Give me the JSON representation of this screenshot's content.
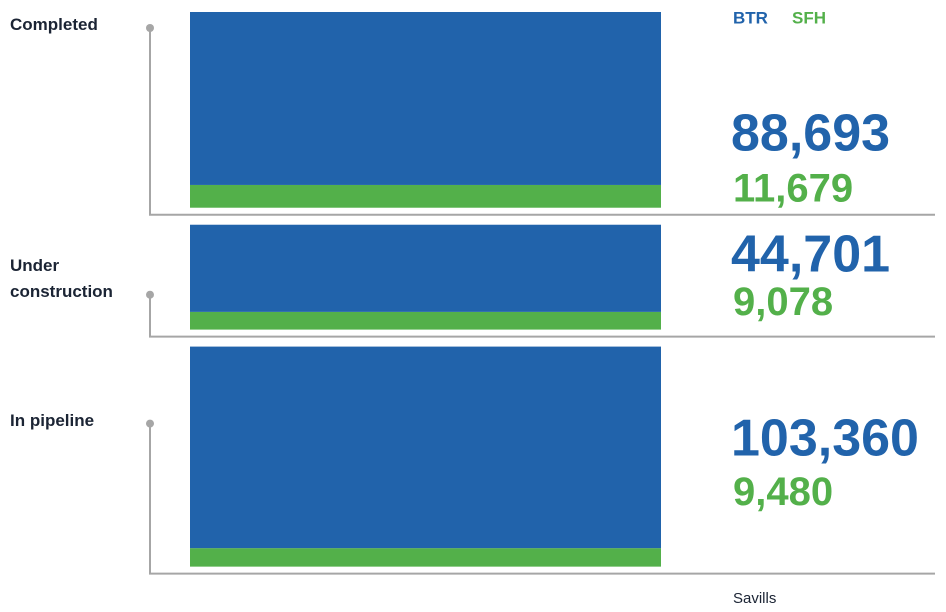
{
  "chart_data": {
    "type": "stacked_bar",
    "categories": [
      "Completed",
      "Under construction",
      "In pipeline"
    ],
    "series": [
      {
        "name": "BTR",
        "color": "#2163ab",
        "values": [
          88693,
          44701,
          103360
        ],
        "value_labels": [
          "88,693",
          "44,701",
          "103,360"
        ]
      },
      {
        "name": "SFH",
        "color": "#53b04a",
        "values": [
          11679,
          9078,
          9480
        ],
        "value_labels": [
          "11,679",
          "9,078",
          "9,480"
        ]
      }
    ],
    "source": "Savills"
  }
}
